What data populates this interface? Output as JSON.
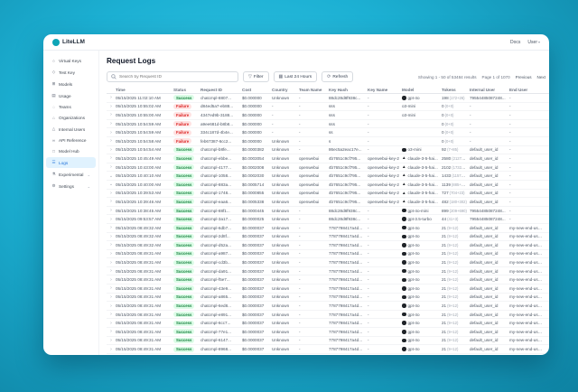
{
  "window": {
    "brand": "LiteLLM",
    "nav": {
      "docs_label": "Docs",
      "user_label": "User"
    }
  },
  "sidebar": {
    "items": [
      {
        "label": "Virtual Keys",
        "icon": "key-icon",
        "glyph": "○",
        "active": false,
        "submenu": false
      },
      {
        "label": "Test Key",
        "icon": "test-key-icon",
        "glyph": "◇",
        "active": false,
        "submenu": false
      },
      {
        "label": "Models",
        "icon": "models-icon",
        "glyph": "⊞",
        "active": false,
        "submenu": false
      },
      {
        "label": "Usage",
        "icon": "usage-icon",
        "glyph": "▤",
        "active": false,
        "submenu": false
      },
      {
        "label": "Teams",
        "icon": "teams-icon",
        "glyph": "◌",
        "active": false,
        "submenu": false
      },
      {
        "label": "Organizations",
        "icon": "organizations-icon",
        "glyph": "⌂",
        "active": false,
        "submenu": false
      },
      {
        "label": "Internal Users",
        "icon": "users-icon",
        "glyph": "△",
        "active": false,
        "submenu": false
      },
      {
        "label": "API Reference",
        "icon": "api-reference-icon",
        "glyph": "∞",
        "active": false,
        "submenu": false
      },
      {
        "label": "Model Hub",
        "icon": "model-hub-icon",
        "glyph": "□",
        "active": false,
        "submenu": false
      },
      {
        "label": "Logs",
        "icon": "logs-icon",
        "glyph": "☰",
        "active": true,
        "submenu": false
      },
      {
        "label": "Experimental",
        "icon": "experimental-icon",
        "glyph": "⚗",
        "active": false,
        "submenu": true
      },
      {
        "label": "Settings",
        "icon": "settings-icon",
        "glyph": "⚙",
        "active": false,
        "submenu": true
      }
    ],
    "submenu_chevron": "⌄"
  },
  "header": {
    "title": "Request Logs"
  },
  "toolbar": {
    "search_placeholder": "Search by Request ID",
    "filter_label": "Filter",
    "filter_glyph": "▽",
    "range_label": "Last 24 Hours",
    "range_glyph": "▦",
    "refresh_label": "Refresh",
    "refresh_glyph": "⟳",
    "showing_text": "Showing 1 - 50 of 53484 results",
    "page_text": "Page 1 of 1070",
    "previous_label": "Previous",
    "next_label": "Next"
  },
  "icons": {
    "collapsed": "›",
    "expanded": "⌄",
    "anthropic_glyph": "▲"
  },
  "table": {
    "columns": [
      {
        "key": "expand",
        "label": ""
      },
      {
        "key": "time",
        "label": "Time"
      },
      {
        "key": "status",
        "label": "Status"
      },
      {
        "key": "request_id",
        "label": "Request ID"
      },
      {
        "key": "cost",
        "label": "Cost"
      },
      {
        "key": "country",
        "label": "Country"
      },
      {
        "key": "team",
        "label": "Team Name"
      },
      {
        "key": "key_hash",
        "label": "Key Hash"
      },
      {
        "key": "key_name",
        "label": "Key Name"
      },
      {
        "key": "model",
        "label": "Model"
      },
      {
        "key": "tokens",
        "label": "Tokens"
      },
      {
        "key": "internal_user",
        "label": "Internal User"
      },
      {
        "key": "end_user",
        "label": "End User"
      }
    ],
    "rows": [
      {
        "expand": "collapsed",
        "time": "05/15/2025 11:02:10 AM",
        "status": "Success",
        "request_id": "chatcmpl-8807...",
        "cost": "$0.000000",
        "country": "Unknown",
        "team": "-",
        "key_hash": "88dc28d8f938c...",
        "key_name": "-",
        "model": "gpt-4o",
        "provider": "openai",
        "tokens": "198",
        "tokens_detail": "(172+26)",
        "internal_user": "79554485087248...",
        "end_user": "-"
      },
      {
        "expand": "collapsed",
        "time": "05/15/2025 10:55:02 AM",
        "status": "Failure",
        "request_id": "d84ed5a7-eb88...",
        "cost": "$0.000000",
        "country": "-",
        "team": "-",
        "key_hash": "sss",
        "key_name": "-",
        "model": "o3-mini",
        "provider": "",
        "tokens": "0",
        "tokens_detail": "(0+0)",
        "internal_user": "-",
        "end_user": "-"
      },
      {
        "expand": "collapsed",
        "time": "05/15/2025 10:55:00 AM",
        "status": "Failure",
        "request_id": "4347ed9b-3188...",
        "cost": "$0.000000",
        "country": "-",
        "team": "-",
        "key_hash": "sss",
        "key_name": "-",
        "model": "o3-mini",
        "provider": "",
        "tokens": "0",
        "tokens_detail": "(0+0)",
        "internal_user": "-",
        "end_user": "-"
      },
      {
        "expand": "collapsed",
        "time": "05/15/2025 10:54:59 AM",
        "status": "Failure",
        "request_id": "a9ee681d-b8b8...",
        "cost": "$0.000000",
        "country": "-",
        "team": "-",
        "key_hash": "sss",
        "key_name": "-",
        "model": "",
        "provider": "",
        "tokens": "0",
        "tokens_detail": "(0+0)",
        "internal_user": "-",
        "end_user": "-"
      },
      {
        "expand": "collapsed",
        "time": "05/15/2025 10:54:59 AM",
        "status": "Failure",
        "request_id": "334c187d-4b4e...",
        "cost": "$0.000000",
        "country": "-",
        "team": "-",
        "key_hash": "ss",
        "key_name": "-",
        "model": "",
        "provider": "",
        "tokens": "0",
        "tokens_detail": "(0+0)",
        "internal_user": "-",
        "end_user": "-"
      },
      {
        "expand": "collapsed",
        "time": "05/15/2025 10:54:58 AM",
        "status": "Failure",
        "request_id": "feb67387-6cc2...",
        "cost": "$0.000000",
        "country": "Unknown",
        "team": "-",
        "key_hash": "s",
        "key_name": "-",
        "model": "",
        "provider": "",
        "tokens": "0",
        "tokens_detail": "(0+0)",
        "internal_user": "-",
        "end_user": "-"
      },
      {
        "expand": "collapsed",
        "time": "05/15/2025 10:54:54 AM",
        "status": "Success",
        "request_id": "chatcmpl-b8fe...",
        "cost": "$0.0000382",
        "country": "Unknown",
        "team": "-",
        "key_hash": "86ec5a2eac17e...",
        "key_name": "-",
        "model": "o3-mini",
        "provider": "openai",
        "tokens": "92",
        "tokens_detail": "(7+85)",
        "internal_user": "default_user_id",
        "end_user": "-"
      },
      {
        "expand": "collapsed",
        "time": "05/15/2025 10:45:49 AM",
        "status": "Success",
        "request_id": "chatcmpl-ebbe...",
        "cost": "$0.0003054",
        "country": "Unknown",
        "team": "openwebui",
        "key_hash": "4b7651c9cf795...",
        "key_name": "openwebui-key-2",
        "model": "claude-3-5-hai...",
        "provider": "anthropic",
        "tokens": "2580",
        "tokens_detail": "(2127+453)",
        "internal_user": "default_user_id",
        "end_user": "-"
      },
      {
        "expand": "collapsed",
        "time": "05/15/2025 10:43:00 AM",
        "status": "Success",
        "request_id": "chatcmpl-4177...",
        "cost": "$0.0002008",
        "country": "Unknown",
        "team": "openwebui",
        "key_hash": "4b7651c9cf795...",
        "key_name": "openwebui-key-2",
        "model": "claude-3-5-hai...",
        "provider": "anthropic",
        "tokens": "2102",
        "tokens_detail": "(1732+370)",
        "internal_user": "default_user_id",
        "end_user": "-"
      },
      {
        "expand": "expanded",
        "time": "05/15/2025 10:40:10 AM",
        "status": "Success",
        "request_id": "chatcmpl-1058...",
        "cost": "$0.0002030",
        "country": "Unknown",
        "team": "openwebui",
        "key_hash": "4b7651c9cf795...",
        "key_name": "openwebui-key-2",
        "model": "claude-3-5-hai...",
        "provider": "anthropic",
        "tokens": "1433",
        "tokens_detail": "(1157+276)",
        "internal_user": "default_user_id",
        "end_user": "-"
      },
      {
        "expand": "expanded",
        "time": "05/15/2025 10:40:00 AM",
        "status": "Success",
        "request_id": "chatcmpl-883a...",
        "cost": "$0.0005714",
        "country": "Unknown",
        "team": "openwebui",
        "key_hash": "4b7651c9cf795...",
        "key_name": "openwebui-key-2",
        "model": "claude-3-5-hai...",
        "provider": "anthropic",
        "tokens": "1139",
        "tokens_detail": "(885+254)",
        "internal_user": "default_user_id",
        "end_user": "-"
      },
      {
        "expand": "collapsed",
        "time": "05/15/2025 10:39:53 AM",
        "status": "Success",
        "request_id": "chatcmpl-1748...",
        "cost": "$0.0000855",
        "country": "Unknown",
        "team": "openwebui",
        "key_hash": "4b7651c9cf795...",
        "key_name": "openwebui-key-2",
        "model": "claude-3-5-hai...",
        "provider": "anthropic",
        "tokens": "727",
        "tokens_detail": "(704+23)",
        "internal_user": "default_user_id",
        "end_user": "-"
      },
      {
        "expand": "collapsed",
        "time": "05/15/2025 10:39:46 AM",
        "status": "Success",
        "request_id": "chatcmpl-eaa6...",
        "cost": "$0.0005338",
        "country": "Unknown",
        "team": "openwebui",
        "key_hash": "4b7651c9cf795...",
        "key_name": "openwebui-key-2",
        "model": "claude-3-5-hai...",
        "provider": "anthropic",
        "tokens": "482",
        "tokens_detail": "(180+302)",
        "internal_user": "default_user_id",
        "end_user": "-"
      },
      {
        "expand": "collapsed",
        "time": "05/15/2025 10:38:45 AM",
        "status": "Success",
        "request_id": "chatcmpl-88f1...",
        "cost": "$0.0000445",
        "country": "Unknown",
        "team": "-",
        "key_hash": "88dc28d8f938c...",
        "key_name": "-",
        "model": "gpt-4o-mini",
        "provider": "openai",
        "tokens": "899",
        "tokens_detail": "(209+690)",
        "internal_user": "79554485087248...",
        "end_user": "-"
      },
      {
        "expand": "collapsed",
        "time": "05/15/2025 09:53:57 AM",
        "status": "Success",
        "request_id": "chatcmpl-3a17...",
        "cost": "$0.0000025",
        "country": "Unknown",
        "team": "-",
        "key_hash": "88dc28d8f938c...",
        "key_name": "-",
        "model": "gpt-3.5-turbo",
        "provider": "openai",
        "tokens": "44",
        "tokens_detail": "(41+3)",
        "internal_user": "79554485087248...",
        "end_user": "-"
      },
      {
        "expand": "collapsed",
        "time": "05/15/2025 08:49:32 AM",
        "status": "Success",
        "request_id": "chatcmpl-6db7...",
        "cost": "$0.0000037",
        "country": "Unknown",
        "team": "-",
        "key_hash": "7787798417a4d...",
        "key_name": "-",
        "model": "gpt-4o",
        "provider": "openai",
        "tokens": "21",
        "tokens_detail": "(9+12)",
        "internal_user": "default_user_id",
        "end_user": "my-new-end-user-1"
      },
      {
        "expand": "collapsed",
        "time": "05/15/2025 08:49:32 AM",
        "status": "Success",
        "request_id": "chatcmpl-2d8f...",
        "cost": "$0.0000037",
        "country": "Unknown",
        "team": "-",
        "key_hash": "7787798417a4d...",
        "key_name": "-",
        "model": "gpt-4o",
        "provider": "openai",
        "tokens": "21",
        "tokens_detail": "(9+12)",
        "internal_user": "default_user_id",
        "end_user": "my-new-end-user-1"
      },
      {
        "expand": "collapsed",
        "time": "05/15/2025 08:49:32 AM",
        "status": "Success",
        "request_id": "chatcmpl-d52a...",
        "cost": "$0.0000037",
        "country": "Unknown",
        "team": "-",
        "key_hash": "7787798417a4d...",
        "key_name": "-",
        "model": "gpt-4o",
        "provider": "openai",
        "tokens": "21",
        "tokens_detail": "(9+12)",
        "internal_user": "default_user_id",
        "end_user": "my-new-end-user-1"
      },
      {
        "expand": "collapsed",
        "time": "05/15/2025 08:49:31 AM",
        "status": "Success",
        "request_id": "chatcmpl-a987...",
        "cost": "$0.0000037",
        "country": "Unknown",
        "team": "-",
        "key_hash": "7787798417a4d...",
        "key_name": "-",
        "model": "gpt-4o",
        "provider": "openai",
        "tokens": "21",
        "tokens_detail": "(9+12)",
        "internal_user": "default_user_id",
        "end_user": "my-new-end-user-1"
      },
      {
        "expand": "collapsed",
        "time": "05/15/2025 08:49:31 AM",
        "status": "Success",
        "request_id": "chatcmpl-cd3b...",
        "cost": "$0.0000037",
        "country": "Unknown",
        "team": "-",
        "key_hash": "7787798417a4d...",
        "key_name": "-",
        "model": "gpt-4o",
        "provider": "openai",
        "tokens": "21",
        "tokens_detail": "(9+12)",
        "internal_user": "default_user_id",
        "end_user": "my-new-end-user-1"
      },
      {
        "expand": "collapsed",
        "time": "05/15/2025 08:49:31 AM",
        "status": "Success",
        "request_id": "chatcmpl-da91...",
        "cost": "$0.0000037",
        "country": "Unknown",
        "team": "-",
        "key_hash": "7787798417a4d...",
        "key_name": "-",
        "model": "gpt-4o",
        "provider": "openai",
        "tokens": "21",
        "tokens_detail": "(9+12)",
        "internal_user": "default_user_id",
        "end_user": "my-new-end-user-1"
      },
      {
        "expand": "collapsed",
        "time": "05/15/2025 08:49:31 AM",
        "status": "Success",
        "request_id": "chatcmpl-f5e7...",
        "cost": "$0.0000037",
        "country": "Unknown",
        "team": "-",
        "key_hash": "7787798417a4d...",
        "key_name": "-",
        "model": "gpt-4o",
        "provider": "openai",
        "tokens": "21",
        "tokens_detail": "(9+12)",
        "internal_user": "default_user_id",
        "end_user": "my-new-end-user-1"
      },
      {
        "expand": "collapsed",
        "time": "05/15/2025 08:49:31 AM",
        "status": "Success",
        "request_id": "chatcmpl-43e9...",
        "cost": "$0.0000037",
        "country": "Unknown",
        "team": "-",
        "key_hash": "7787798417a4d...",
        "key_name": "-",
        "model": "gpt-4o",
        "provider": "openai",
        "tokens": "21",
        "tokens_detail": "(9+12)",
        "internal_user": "default_user_id",
        "end_user": "my-new-end-user-1"
      },
      {
        "expand": "collapsed",
        "time": "05/15/2025 08:49:31 AM",
        "status": "Success",
        "request_id": "chatcmpl-a865...",
        "cost": "$0.0000037",
        "country": "Unknown",
        "team": "-",
        "key_hash": "7787798417a4d...",
        "key_name": "-",
        "model": "gpt-4o",
        "provider": "openai",
        "tokens": "21",
        "tokens_detail": "(9+12)",
        "internal_user": "default_user_id",
        "end_user": "my-new-end-user-1"
      },
      {
        "expand": "collapsed",
        "time": "05/15/2025 08:49:31 AM",
        "status": "Success",
        "request_id": "chatcmpl-6ed8...",
        "cost": "$0.0000037",
        "country": "Unknown",
        "team": "-",
        "key_hash": "7787798417a4d...",
        "key_name": "-",
        "model": "gpt-4o",
        "provider": "openai",
        "tokens": "21",
        "tokens_detail": "(9+12)",
        "internal_user": "default_user_id",
        "end_user": "my-new-end-user-1"
      },
      {
        "expand": "collapsed",
        "time": "05/15/2025 08:49:31 AM",
        "status": "Success",
        "request_id": "chatcmpl-e891...",
        "cost": "$0.0000037",
        "country": "Unknown",
        "team": "-",
        "key_hash": "7787798417a4d...",
        "key_name": "-",
        "model": "gpt-4o",
        "provider": "openai",
        "tokens": "21",
        "tokens_detail": "(9+12)",
        "internal_user": "default_user_id",
        "end_user": "my-new-end-user-1"
      },
      {
        "expand": "collapsed",
        "time": "05/15/2025 08:49:31 AM",
        "status": "Success",
        "request_id": "chatcmpl-6cc7...",
        "cost": "$0.0000037",
        "country": "Unknown",
        "team": "-",
        "key_hash": "7787798417a4d...",
        "key_name": "-",
        "model": "gpt-4o",
        "provider": "openai",
        "tokens": "21",
        "tokens_detail": "(9+12)",
        "internal_user": "default_user_id",
        "end_user": "my-new-end-user-1"
      },
      {
        "expand": "collapsed",
        "time": "05/15/2025 08:49:31 AM",
        "status": "Success",
        "request_id": "chatcmpl-77e1...",
        "cost": "$0.0000037",
        "country": "Unknown",
        "team": "-",
        "key_hash": "7787798417a4d...",
        "key_name": "-",
        "model": "gpt-4o",
        "provider": "openai",
        "tokens": "21",
        "tokens_detail": "(9+12)",
        "internal_user": "default_user_id",
        "end_user": "my-new-end-user-1"
      },
      {
        "expand": "collapsed",
        "time": "05/15/2025 08:49:31 AM",
        "status": "Success",
        "request_id": "chatcmpl-6147...",
        "cost": "$0.0000037",
        "country": "Unknown",
        "team": "-",
        "key_hash": "7787798417a4d...",
        "key_name": "-",
        "model": "gpt-4o",
        "provider": "openai",
        "tokens": "21",
        "tokens_detail": "(9+12)",
        "internal_user": "default_user_id",
        "end_user": "my-new-end-user-1"
      },
      {
        "expand": "collapsed",
        "time": "05/15/2025 08:49:31 AM",
        "status": "Success",
        "request_id": "chatcmpl-8968...",
        "cost": "$0.0000037",
        "country": "Unknown",
        "team": "-",
        "key_hash": "7787798417a4d...",
        "key_name": "-",
        "model": "gpt-4o",
        "provider": "openai",
        "tokens": "21",
        "tokens_detail": "(9+12)",
        "internal_user": "default_user_id",
        "end_user": "my-new-end-user-1"
      },
      {
        "expand": "collapsed",
        "time": "05/15/2025 08:49:31 AM",
        "status": "Success",
        "request_id": "chatcmpl-e777...",
        "cost": "$0.0000037",
        "country": "Unknown",
        "team": "-",
        "key_hash": "7787798417a4d...",
        "key_name": "-",
        "model": "gpt-4o",
        "provider": "openai",
        "tokens": "21",
        "tokens_detail": "(9+12)",
        "internal_user": "default_user_id",
        "end_user": "my-new-end-user-1"
      }
    ]
  }
}
